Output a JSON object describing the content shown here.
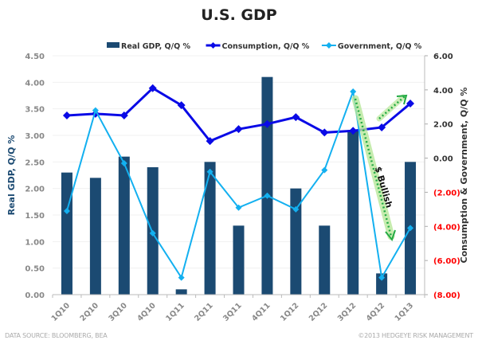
{
  "chart_data": {
    "type": "bar",
    "title": "U.S. GDP",
    "categories": [
      "1Q10",
      "2Q10",
      "3Q10",
      "4Q10",
      "1Q11",
      "2Q11",
      "3Q11",
      "4Q11",
      "1Q12",
      "2Q12",
      "3Q12",
      "4Q12",
      "1Q13"
    ],
    "series": [
      {
        "name": "Real GDP, Q/Q %",
        "type": "bar",
        "axis": "left",
        "color": "#1b4a72",
        "values": [
          2.3,
          2.2,
          2.6,
          2.4,
          0.1,
          2.5,
          1.3,
          4.1,
          2.0,
          1.3,
          3.1,
          0.4,
          2.5
        ]
      },
      {
        "name": "Consumption, Q/Q %",
        "type": "line",
        "axis": "right",
        "color": "#0a0ae6",
        "values": [
          2.5,
          2.6,
          2.5,
          4.1,
          3.1,
          1.0,
          1.7,
          2.0,
          2.4,
          1.5,
          1.6,
          1.8,
          3.2
        ]
      },
      {
        "name": "Government, Q/Q %",
        "type": "line",
        "axis": "right",
        "color": "#13b0f0",
        "values": [
          -3.1,
          2.8,
          -0.3,
          -4.4,
          -7.0,
          -0.8,
          -2.9,
          -2.2,
          -3.0,
          -0.7,
          3.9,
          -7.0,
          -4.1
        ]
      }
    ],
    "ylabel": "Real GDP, Q/Q %",
    "ylim": [
      0,
      4.5
    ],
    "yticks": [
      "0.00",
      "0.50",
      "1.00",
      "1.50",
      "2.00",
      "2.50",
      "3.00",
      "3.50",
      "4.00",
      "4.50"
    ],
    "y2label": "Consumption & Government, Q/Q %",
    "y2lim": [
      -8,
      6
    ],
    "y2ticks": [
      {
        "v": 6,
        "label": "6.00"
      },
      {
        "v": 4,
        "label": "4.00"
      },
      {
        "v": 2,
        "label": "2.00"
      },
      {
        "v": 0,
        "label": "0.00"
      },
      {
        "v": -2,
        "label": "(2.00)"
      },
      {
        "v": -4,
        "label": "(4.00)"
      },
      {
        "v": -6,
        "label": "(6.00)"
      },
      {
        "v": -8,
        "label": "(8.00)"
      }
    ],
    "negative_tick_color": "#ff0000",
    "grid": true,
    "legend": "top",
    "annotation": "$ Bullish",
    "annotation_color": "#22aa44"
  },
  "footer": {
    "source": "DATA SOURCE: BLOOMBERG, BEA",
    "copyright": "©2013 HEDGEYE RISK MANAGEMENT"
  }
}
